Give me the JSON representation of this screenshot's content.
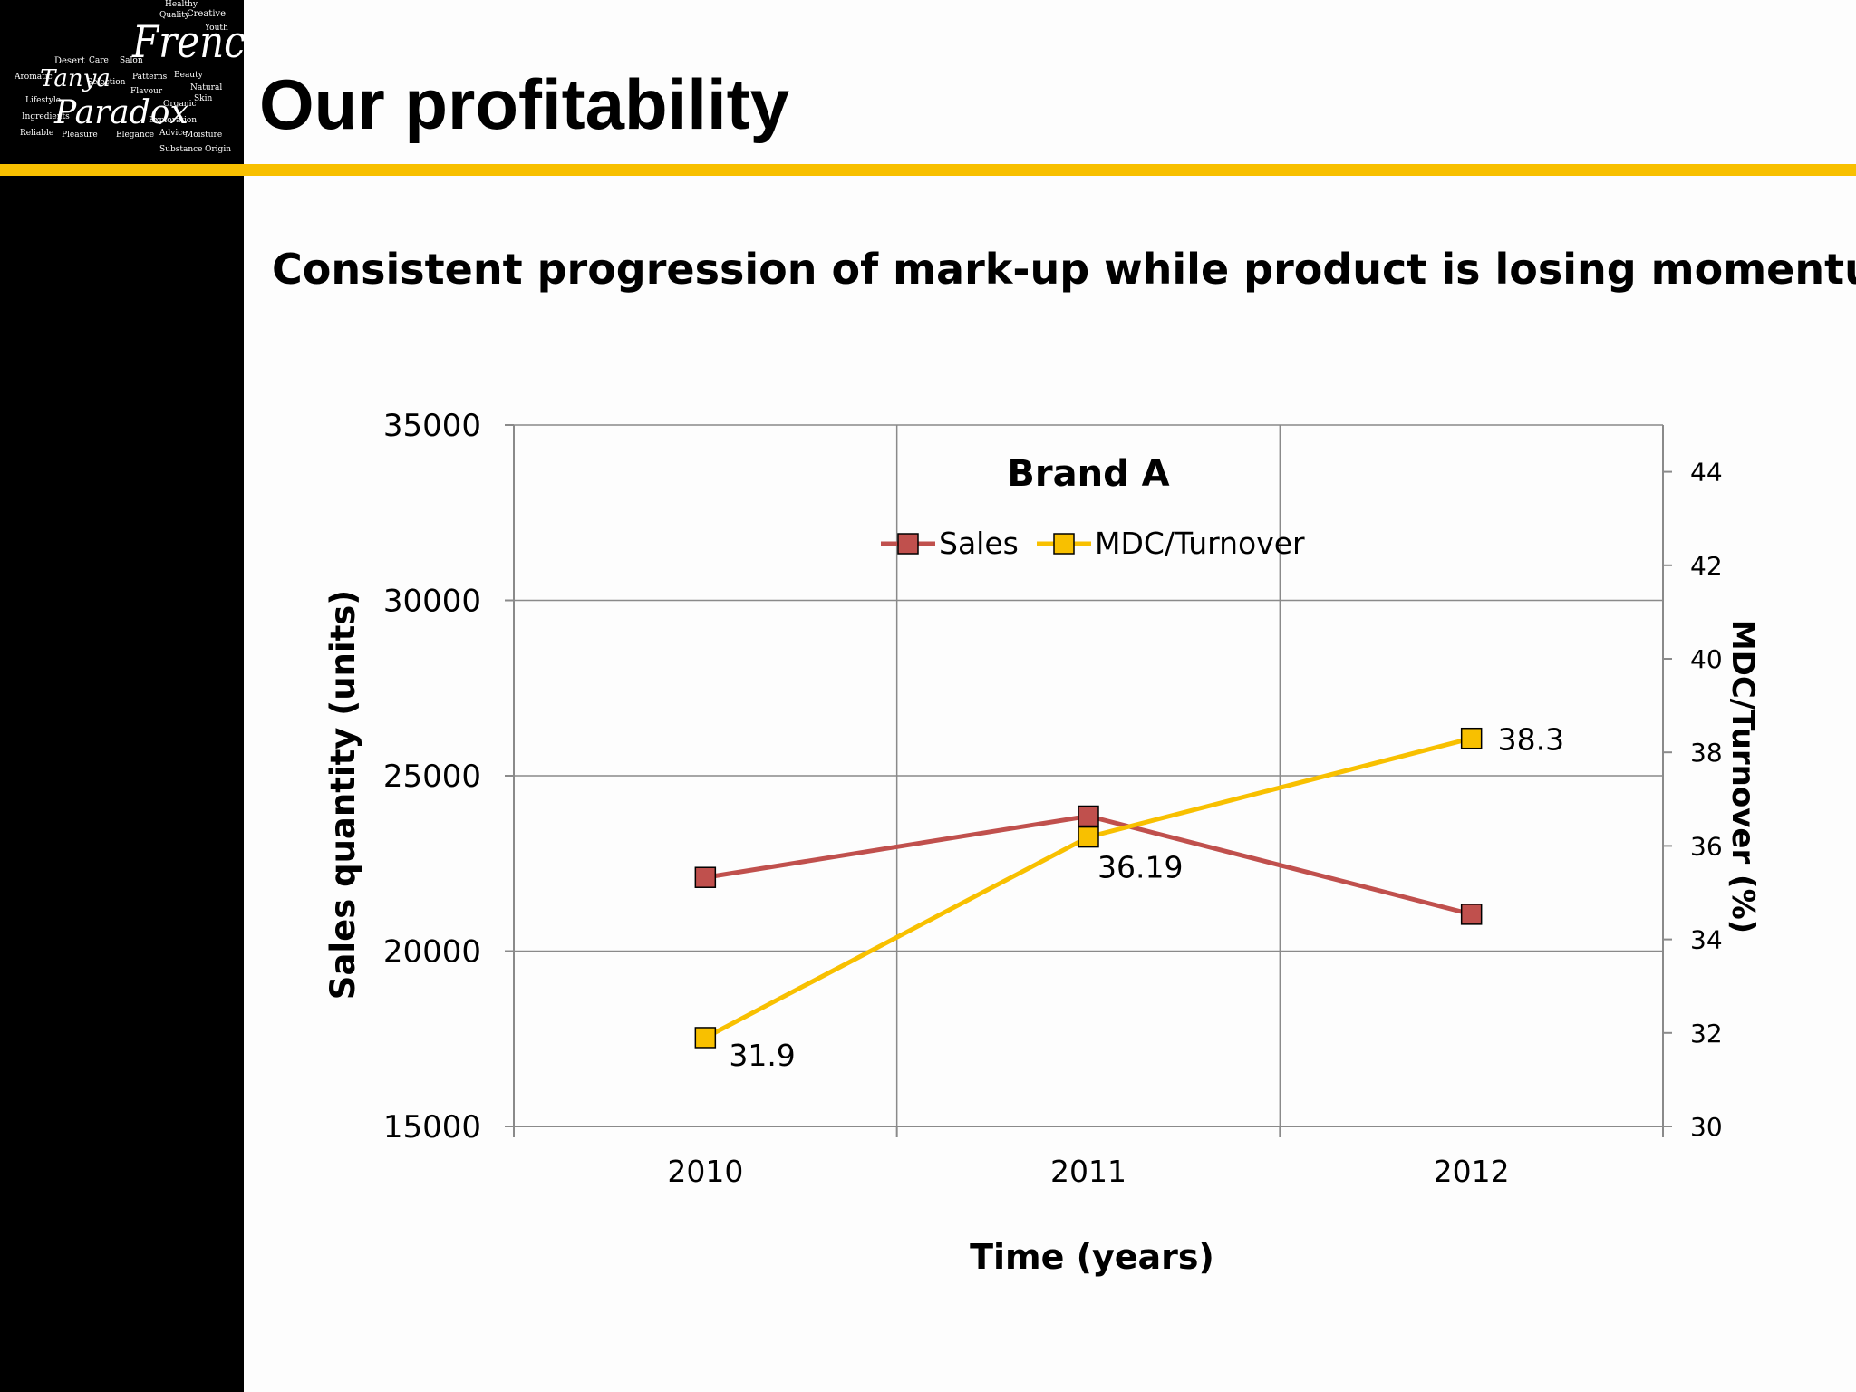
{
  "slide": {
    "title": "Our profitability",
    "subtitle": "Consistent progression of mark-up while product is losing momentum",
    "rule_color": "#f8c000"
  },
  "logo": {
    "words_large": [
      "French",
      "Tanya",
      "Paradox"
    ],
    "words_small": [
      "Healthy",
      "Creative",
      "Quality",
      "Youth",
      "Desert",
      "Care",
      "Aromatic",
      "Salon",
      "Selection",
      "Patterns",
      "Beauty",
      "Skin",
      "Lifestyle",
      "Exploration",
      "Ingredients",
      "Organic",
      "Reliable",
      "Flavour",
      "Pleasure",
      "Elegance",
      "Natural",
      "Advice",
      "Moisture",
      "Substance",
      "Origin"
    ]
  },
  "chart_data": {
    "type": "line",
    "title": "Brand A",
    "xlabel": "Time (years)",
    "ylabel": "Sales quantity (units)",
    "y2label": "MDC/Turnover (%)",
    "categories": [
      "2010",
      "2011",
      "2012"
    ],
    "ylim": [
      15000,
      35000
    ],
    "yticks": [
      15000,
      20000,
      25000,
      30000,
      35000
    ],
    "y2lim": [
      30,
      45
    ],
    "y2ticks": [
      30,
      32,
      34,
      36,
      38,
      40,
      42,
      44
    ],
    "grid": true,
    "legend": "top-center",
    "series": [
      {
        "name": "Sales",
        "axis": "left",
        "values": [
          22100,
          23850,
          21050
        ],
        "color": "#c0504d",
        "labels": []
      },
      {
        "name": "MDC/Turnover",
        "axis": "right",
        "values": [
          31.9,
          36.19,
          38.3
        ],
        "color": "#f8c000",
        "labels": [
          "31.9",
          "36.19",
          "38.3"
        ]
      }
    ]
  }
}
